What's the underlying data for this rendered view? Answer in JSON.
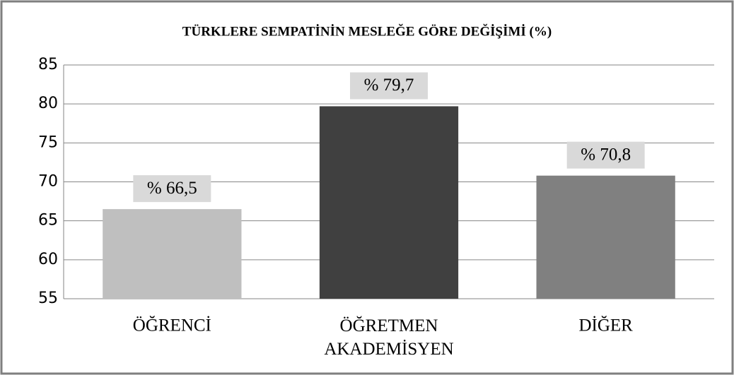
{
  "chart_data": {
    "type": "bar",
    "title": "TÜRKLERE SEMPATİNİN MESLEĞE GÖRE DEĞİŞİMİ (%)",
    "categories": [
      "ÖĞRENCİ",
      "ÖĞRETMEN AKADEMİSYEN",
      "DİĞER"
    ],
    "values": [
      66.5,
      79.7,
      70.8
    ],
    "value_labels": [
      "% 66,5",
      "% 79,7",
      "% 70,8"
    ],
    "colors": [
      "#bfbfbf",
      "#404040",
      "#808080"
    ],
    "ylim": [
      55,
      85
    ],
    "yticks": [
      55,
      60,
      65,
      70,
      75,
      80,
      85
    ],
    "grid": true
  }
}
